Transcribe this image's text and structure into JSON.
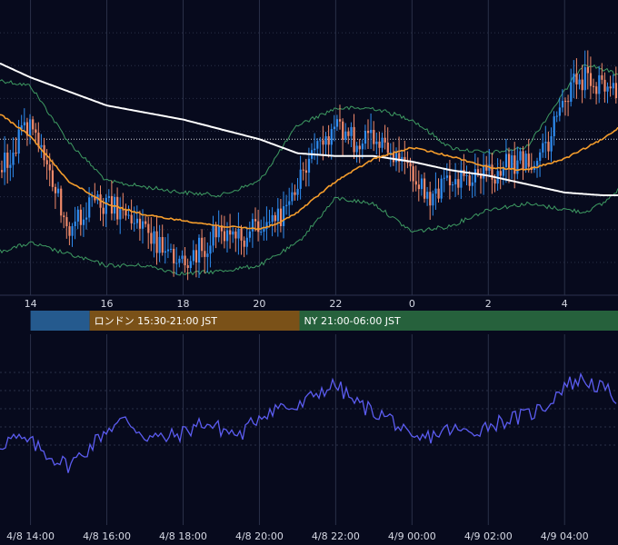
{
  "colors": {
    "background": "#070a1d",
    "grid": "#2a3048",
    "bull": "#2f8cf0",
    "bear": "#f08a6a",
    "ma_short": "#f59d2c",
    "ma_long": "#ffffff",
    "bollinger": "#3e9b62",
    "oscillator": "#5b5cf0",
    "session_tokyo": "#255a8e",
    "session_london": "#7a5118",
    "session_ny": "#26613c",
    "price_line": "#cfd3dc"
  },
  "sessions": [
    {
      "label": "",
      "start": 0,
      "end": 1.55
    },
    {
      "label": "ロンドン 15:30-21:00 JST",
      "start": 1.55,
      "end": 7.05
    },
    {
      "label": "NY 21:00-06:00 JST",
      "start": 7.05,
      "end": 17.0
    }
  ],
  "chart_data": [
    {
      "type": "candlestick",
      "title": "",
      "xlabel": "",
      "ylabel": "",
      "x_ticks": [
        {
          "label": "14",
          "hour": 0.0
        },
        {
          "label": "16",
          "hour": 2.0
        },
        {
          "label": "18",
          "hour": 4.0
        },
        {
          "label": "20",
          "hour": 6.0
        },
        {
          "label": "22",
          "hour": 8.0
        },
        {
          "label": "0",
          "hour": 10.0
        },
        {
          "label": "2",
          "hour": 12.0
        },
        {
          "label": "4",
          "hour": 14.0
        }
      ],
      "x_range": [
        -0.8,
        15.4
      ],
      "ylim": [
        0,
        100
      ],
      "current_price_level": 47,
      "price_keypoints": [
        [
          -0.8,
          58
        ],
        [
          -0.5,
          52
        ],
        [
          0.0,
          40
        ],
        [
          0.5,
          62
        ],
        [
          1.0,
          78
        ],
        [
          1.5,
          72
        ],
        [
          2.0,
          70
        ],
        [
          2.5,
          74
        ],
        [
          3.0,
          80
        ],
        [
          3.5,
          86
        ],
        [
          4.0,
          92
        ],
        [
          4.5,
          85
        ],
        [
          5.0,
          79
        ],
        [
          5.5,
          82
        ],
        [
          6.0,
          78
        ],
        [
          6.5,
          76
        ],
        [
          7.0,
          60
        ],
        [
          7.5,
          50
        ],
        [
          8.0,
          42
        ],
        [
          8.5,
          48
        ],
        [
          9.0,
          45
        ],
        [
          9.5,
          52
        ],
        [
          10.0,
          58
        ],
        [
          10.5,
          68
        ],
        [
          11.0,
          62
        ],
        [
          11.5,
          62
        ],
        [
          12.0,
          60
        ],
        [
          12.5,
          56
        ],
        [
          13.0,
          55
        ],
        [
          13.5,
          52
        ],
        [
          14.0,
          30
        ],
        [
          14.5,
          25
        ],
        [
          15.0,
          28
        ],
        [
          15.4,
          32
        ]
      ],
      "ma_short_keypoints": [
        [
          -0.8,
          38
        ],
        [
          0.0,
          46
        ],
        [
          1.0,
          62
        ],
        [
          2.0,
          70
        ],
        [
          3.0,
          74
        ],
        [
          4.0,
          76
        ],
        [
          5.0,
          78
        ],
        [
          6.0,
          79
        ],
        [
          6.5,
          77
        ],
        [
          7.0,
          73
        ],
        [
          8.0,
          62
        ],
        [
          9.0,
          54
        ],
        [
          10.0,
          50
        ],
        [
          11.0,
          53
        ],
        [
          12.0,
          57
        ],
        [
          13.0,
          58
        ],
        [
          14.0,
          54
        ],
        [
          15.0,
          47
        ],
        [
          15.4,
          43
        ]
      ],
      "ma_long_keypoints": [
        [
          -0.8,
          20
        ],
        [
          0.0,
          25
        ],
        [
          2.0,
          35
        ],
        [
          4.0,
          40
        ],
        [
          6.0,
          47
        ],
        [
          7.0,
          52
        ],
        [
          8.0,
          53
        ],
        [
          9.0,
          53
        ],
        [
          10.0,
          55
        ],
        [
          11.0,
          58
        ],
        [
          12.0,
          60
        ],
        [
          13.0,
          63
        ],
        [
          14.0,
          66
        ],
        [
          15.0,
          67
        ],
        [
          15.4,
          67
        ]
      ],
      "bollinger_upper_keypoints": [
        [
          -0.8,
          26
        ],
        [
          0.0,
          28
        ],
        [
          1.0,
          48
        ],
        [
          2.0,
          62
        ],
        [
          3.0,
          64
        ],
        [
          4.0,
          66
        ],
        [
          5.0,
          67
        ],
        [
          6.0,
          62
        ],
        [
          7.0,
          42
        ],
        [
          8.0,
          36
        ],
        [
          9.0,
          36
        ],
        [
          10.0,
          40
        ],
        [
          11.0,
          50
        ],
        [
          12.0,
          52
        ],
        [
          13.0,
          50
        ],
        [
          14.0,
          30
        ],
        [
          14.5,
          20
        ],
        [
          15.0,
          22
        ],
        [
          15.4,
          24
        ]
      ],
      "bollinger_lower_keypoints": [
        [
          -0.8,
          87
        ],
        [
          0.0,
          84
        ],
        [
          1.0,
          88
        ],
        [
          2.0,
          92
        ],
        [
          3.0,
          92
        ],
        [
          4.0,
          95
        ],
        [
          5.0,
          94
        ],
        [
          6.0,
          92
        ],
        [
          7.0,
          84
        ],
        [
          8.0,
          68
        ],
        [
          9.0,
          70
        ],
        [
          10.0,
          80
        ],
        [
          11.0,
          78
        ],
        [
          12.0,
          72
        ],
        [
          13.0,
          70
        ],
        [
          14.0,
          72
        ],
        [
          14.5,
          73
        ],
        [
          15.0,
          70
        ],
        [
          15.4,
          65
        ]
      ]
    },
    {
      "type": "line",
      "title": "",
      "ylabel": "",
      "x_ticks": [
        {
          "label": "4/8 14:00",
          "hour": 0.0
        },
        {
          "label": "4/8 16:00",
          "hour": 2.0
        },
        {
          "label": "4/8 18:00",
          "hour": 4.0
        },
        {
          "label": "4/8 20:00",
          "hour": 6.0
        },
        {
          "label": "4/8 22:00",
          "hour": 8.0
        },
        {
          "label": "4/9 00:00",
          "hour": 10.0
        },
        {
          "label": "4/9 02:00",
          "hour": 12.0
        },
        {
          "label": "4/9 04:00",
          "hour": 14.0
        }
      ],
      "x_range": [
        -0.8,
        15.4
      ],
      "ylim": [
        0,
        100
      ],
      "keypoints": [
        [
          -0.8,
          33
        ],
        [
          -0.5,
          38
        ],
        [
          0.0,
          35
        ],
        [
          0.5,
          25
        ],
        [
          1.0,
          18
        ],
        [
          1.5,
          30
        ],
        [
          2.0,
          45
        ],
        [
          2.5,
          52
        ],
        [
          3.0,
          40
        ],
        [
          3.5,
          38
        ],
        [
          4.0,
          42
        ],
        [
          4.5,
          50
        ],
        [
          5.0,
          45
        ],
        [
          5.5,
          40
        ],
        [
          6.0,
          55
        ],
        [
          6.5,
          62
        ],
        [
          7.0,
          60
        ],
        [
          7.5,
          72
        ],
        [
          8.0,
          78
        ],
        [
          8.5,
          65
        ],
        [
          9.0,
          58
        ],
        [
          9.5,
          52
        ],
        [
          10.0,
          35
        ],
        [
          10.5,
          40
        ],
        [
          11.0,
          45
        ],
        [
          11.5,
          42
        ],
        [
          12.0,
          48
        ],
        [
          12.5,
          52
        ],
        [
          13.0,
          55
        ],
        [
          13.5,
          62
        ],
        [
          14.0,
          78
        ],
        [
          14.5,
          82
        ],
        [
          15.0,
          75
        ],
        [
          15.4,
          68
        ]
      ]
    }
  ]
}
